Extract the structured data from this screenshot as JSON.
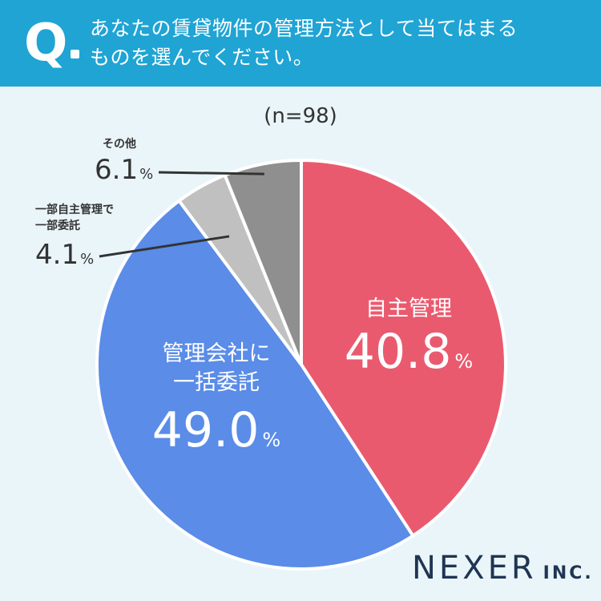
{
  "question": {
    "prefix": "Q",
    "line1": "あなたの賃貸物件の管理方法として当てはまる",
    "line2": "ものを選んでください。"
  },
  "sample": "(n=98)",
  "percent_symbol": "%",
  "chart_data": {
    "type": "pie",
    "start_angle_deg": 0,
    "direction": "clockwise",
    "slices": [
      {
        "label_lines": [
          "自主管理"
        ],
        "value": 40.8,
        "value_text": "40.8",
        "color": "#ea5a6e"
      },
      {
        "label_lines": [
          "管理会社に",
          "一括委託"
        ],
        "value": 49.0,
        "value_text": "49.0",
        "color": "#5a8ce8"
      },
      {
        "label_lines": [
          "一部自主管理で",
          "一部委託"
        ],
        "value": 4.1,
        "value_text": "4.1",
        "color": "#c0c0c0"
      },
      {
        "label_lines": [
          "その他"
        ],
        "value": 6.1,
        "value_text": "6.1",
        "color": "#8f8f8f"
      }
    ]
  },
  "logo": {
    "main": "NEXER",
    "suffix": "INC."
  },
  "colors": {
    "header_bg": "#1fa4d4",
    "page_bg": "#eaf5f9",
    "logo": "#1f3552",
    "leader": "#333333"
  }
}
